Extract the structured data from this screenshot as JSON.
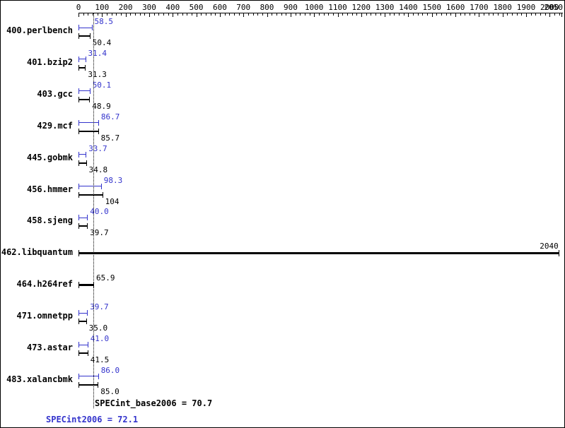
{
  "chart_data": {
    "type": "bar",
    "orientation": "horizontal",
    "axis": {
      "position": "top",
      "min": 0,
      "max": 2050,
      "major_tick_step": 100,
      "minor_tick_step": 20,
      "tick_labels": [
        "0",
        "100",
        "200",
        "300",
        "400",
        "500",
        "600",
        "700",
        "800",
        "900",
        "1000",
        "1100",
        "1200",
        "1300",
        "1400",
        "1500",
        "1600",
        "1700",
        "1800",
        "1900",
        "2000",
        "2050"
      ]
    },
    "series_colors": {
      "peak": "#3333cc",
      "base": "#000000"
    },
    "benchmarks": [
      {
        "name": "400.perlbench",
        "peak": 58.5,
        "peak_label": "58.5",
        "base": 50.4,
        "base_label": "50.4"
      },
      {
        "name": "401.bzip2",
        "peak": 31.4,
        "peak_label": "31.4",
        "base": 31.3,
        "base_label": "31.3"
      },
      {
        "name": "403.gcc",
        "peak": 50.1,
        "peak_label": "50.1",
        "base": 48.9,
        "base_label": "48.9"
      },
      {
        "name": "429.mcf",
        "peak": 86.7,
        "peak_label": "86.7",
        "base": 85.7,
        "base_label": "85.7"
      },
      {
        "name": "445.gobmk",
        "peak": 33.7,
        "peak_label": "33.7",
        "base": 34.8,
        "base_label": "34.8"
      },
      {
        "name": "456.hmmer",
        "peak": 98.3,
        "peak_label": "98.3",
        "base": 104,
        "base_label": "104"
      },
      {
        "name": "458.sjeng",
        "peak": 40.0,
        "peak_label": "40.0",
        "base": 39.7,
        "base_label": "39.7"
      },
      {
        "name": "462.libquantum",
        "single": true,
        "base": 2040,
        "base_label": "2040"
      },
      {
        "name": "464.h264ref",
        "single": true,
        "base": 65.9,
        "base_label": "65.9"
      },
      {
        "name": "471.omnetpp",
        "peak": 39.7,
        "peak_label": "39.7",
        "base": 35.0,
        "base_label": "35.0"
      },
      {
        "name": "473.astar",
        "peak": 41.0,
        "peak_label": "41.0",
        "base": 41.5,
        "base_label": "41.5"
      },
      {
        "name": "483.xalancbmk",
        "peak": 86.0,
        "peak_label": "86.0",
        "base": 85.0,
        "base_label": "85.0"
      }
    ],
    "reference_line": {
      "value": 70.7,
      "style": "dotted"
    },
    "summary": {
      "base_text": "SPECint_base2006 = 70.7",
      "peak_text": "SPECint2006 = 72.1"
    }
  }
}
